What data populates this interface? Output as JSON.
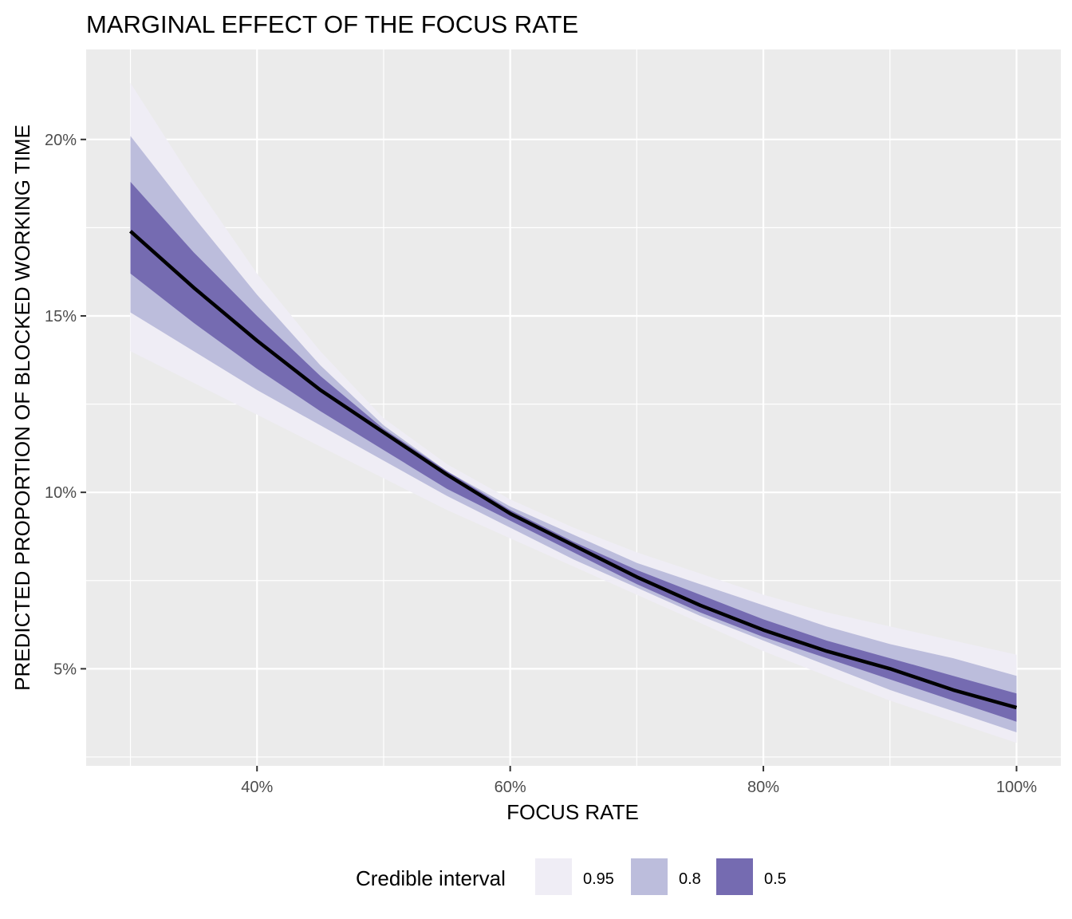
{
  "chart_data": {
    "type": "area",
    "title": "MARGINAL EFFECT OF THE FOCUS RATE",
    "xlabel": "FOCUS RATE",
    "ylabel": "PREDICTED PROPORTION OF BLOCKED WORKING TIME",
    "xlim": [
      0.265,
      1.035
    ],
    "ylim": [
      0.0225,
      0.2255
    ],
    "x_ticks": [
      0.4,
      0.6,
      0.8,
      1.0
    ],
    "x_tick_labels": [
      "40%",
      "60%",
      "80%",
      "100%"
    ],
    "y_ticks": [
      0.05,
      0.1,
      0.15,
      0.2
    ],
    "y_tick_labels": [
      "5%",
      "10%",
      "15%",
      "20%"
    ],
    "grid": true,
    "background": "#EBEBEB",
    "legend": {
      "title": "Credible interval",
      "position": "bottom",
      "entries": [
        {
          "label": "0.95",
          "color": "#EFEDF5"
        },
        {
          "label": "0.8",
          "color": "#BCBDDC"
        },
        {
          "label": "0.5",
          "color": "#756BB1"
        }
      ]
    },
    "x": [
      0.3,
      0.35,
      0.4,
      0.45,
      0.5,
      0.55,
      0.6,
      0.65,
      0.7,
      0.75,
      0.8,
      0.85,
      0.9,
      0.95,
      1.0
    ],
    "series": [
      {
        "name": "median",
        "color": "#000000",
        "values": [
          0.174,
          0.158,
          0.143,
          0.129,
          0.117,
          0.105,
          0.094,
          0.085,
          0.076,
          0.068,
          0.061,
          0.055,
          0.05,
          0.044,
          0.039
        ]
      },
      {
        "interval": "0.95",
        "color": "#EFEDF5",
        "lower": [
          0.14,
          0.131,
          0.122,
          0.113,
          0.104,
          0.095,
          0.087,
          0.079,
          0.071,
          0.063,
          0.055,
          0.048,
          0.041,
          0.035,
          0.029
        ],
        "upper": [
          0.216,
          0.188,
          0.162,
          0.14,
          0.121,
          0.108,
          0.098,
          0.09,
          0.083,
          0.077,
          0.071,
          0.066,
          0.062,
          0.058,
          0.054
        ]
      },
      {
        "interval": "0.8",
        "color": "#BCBDDC",
        "lower": [
          0.151,
          0.14,
          0.129,
          0.119,
          0.109,
          0.099,
          0.09,
          0.081,
          0.073,
          0.065,
          0.058,
          0.051,
          0.044,
          0.038,
          0.032
        ],
        "upper": [
          0.201,
          0.178,
          0.156,
          0.136,
          0.119,
          0.106,
          0.096,
          0.088,
          0.08,
          0.074,
          0.068,
          0.062,
          0.057,
          0.053,
          0.048
        ]
      },
      {
        "interval": "0.5",
        "color": "#756BB1",
        "lower": [
          0.162,
          0.148,
          0.135,
          0.123,
          0.112,
          0.101,
          0.092,
          0.083,
          0.074,
          0.066,
          0.059,
          0.053,
          0.047,
          0.041,
          0.035
        ],
        "upper": [
          0.188,
          0.168,
          0.15,
          0.133,
          0.118,
          0.106,
          0.095,
          0.086,
          0.078,
          0.071,
          0.064,
          0.058,
          0.053,
          0.048,
          0.043
        ]
      }
    ]
  }
}
